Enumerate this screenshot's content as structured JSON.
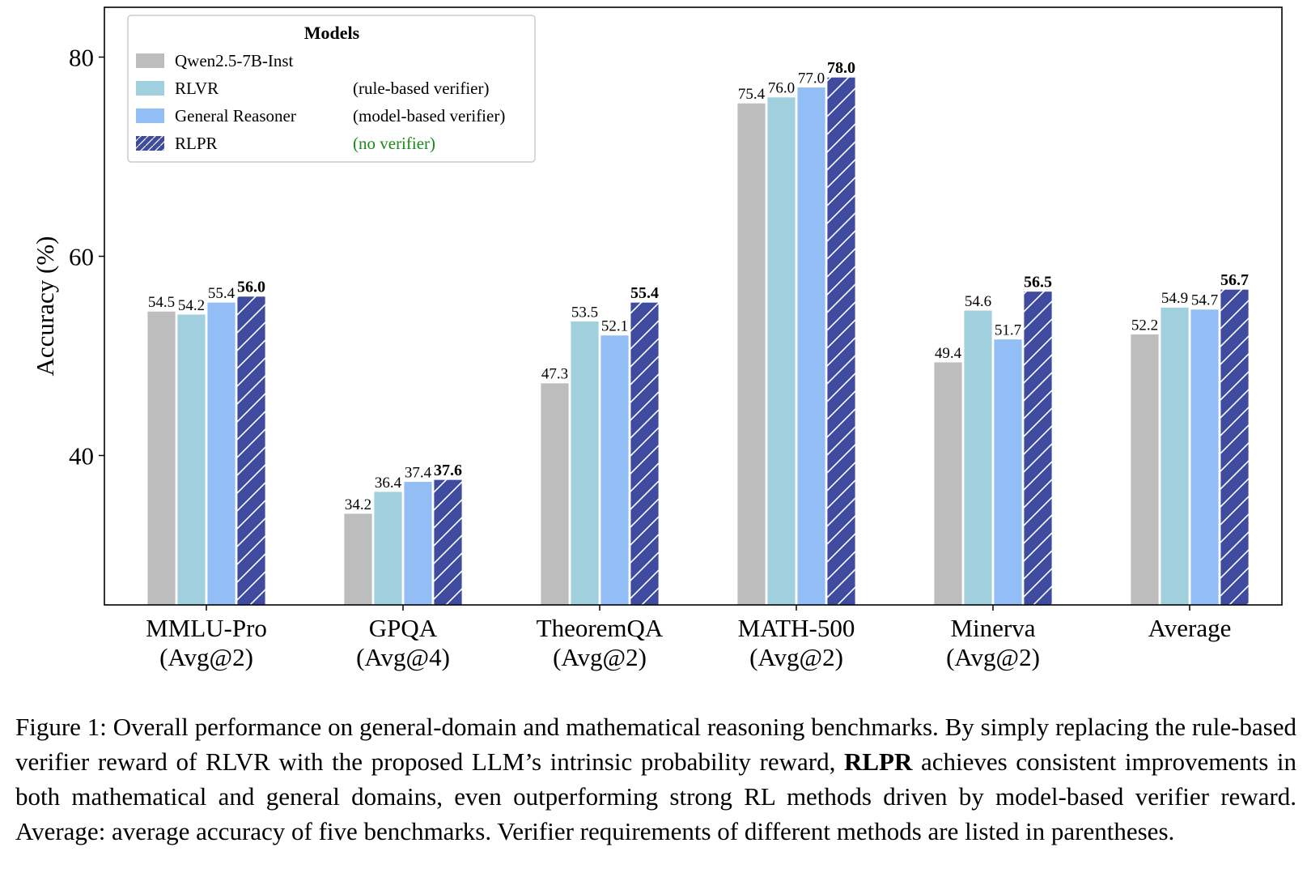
{
  "chart_data": {
    "type": "bar",
    "categories": [
      {
        "line1": "MMLU-Pro",
        "line2": "(Avg@2)"
      },
      {
        "line1": "GPQA",
        "line2": "(Avg@4)"
      },
      {
        "line1": "TheoremQA",
        "line2": "(Avg@2)"
      },
      {
        "line1": "MATH-500",
        "line2": "(Avg@2)"
      },
      {
        "line1": "Minerva",
        "line2": "(Avg@2)"
      },
      {
        "line1": "Average",
        "line2": ""
      }
    ],
    "series": [
      {
        "name": "Qwen2.5-7B-Inst",
        "note": "",
        "color": "#bdbdbd",
        "hatch": false,
        "bold_labels": false,
        "values": [
          54.5,
          34.2,
          47.3,
          75.4,
          49.4,
          52.2
        ]
      },
      {
        "name": "RLVR",
        "note": "(rule-based verifier)",
        "color": "#a0d0de",
        "hatch": false,
        "bold_labels": false,
        "values": [
          54.2,
          36.4,
          53.5,
          76.0,
          54.6,
          54.9
        ]
      },
      {
        "name": "General Reasoner",
        "note": "(model-based verifier)",
        "color": "#92bdf5",
        "hatch": false,
        "bold_labels": false,
        "values": [
          55.4,
          37.4,
          52.1,
          77.0,
          51.7,
          54.7
        ]
      },
      {
        "name": "RLPR",
        "note": "(no verifier)",
        "note_color": "#1a8a1a",
        "color": "#3f4b9e",
        "hatch": true,
        "bold_labels": true,
        "values": [
          56.0,
          37.6,
          55.4,
          78.0,
          56.5,
          56.7
        ]
      }
    ],
    "value_labels": [
      [
        "54.5",
        "34.2",
        "47.3",
        "75.4",
        "49.4",
        "52.2"
      ],
      [
        "54.2",
        "36.4",
        "53.5",
        "76.0",
        "54.6",
        "54.9"
      ],
      [
        "55.4",
        "37.4",
        "52.1",
        "77.0",
        "51.7",
        "54.7"
      ],
      [
        "56.0",
        "37.6",
        "55.4",
        "78.0",
        "56.5",
        "56.7"
      ]
    ],
    "ylabel": "Accuracy (%)",
    "ylim": [
      25,
      85
    ],
    "yticks": [
      40,
      60,
      80
    ],
    "ytick_labels": [
      "40",
      "60",
      "80"
    ],
    "legend_title": "Models",
    "legend_position": "top-left",
    "grid": false
  },
  "caption": {
    "label": "Figure 1:",
    "text_1": "Overall performance on general-domain and mathematical reasoning benchmarks. By simply replacing the rule-based verifier reward of RLVR with the proposed LLM’s intrinsic probability reward,",
    "bold": "RLPR",
    "text_2": "achieves consistent improvements in both mathematical and general domains, even outperforming strong RL methods driven by model-based verifier reward. Average: average accuracy of five benchmarks. Verifier requirements of different methods are listed in parentheses."
  }
}
